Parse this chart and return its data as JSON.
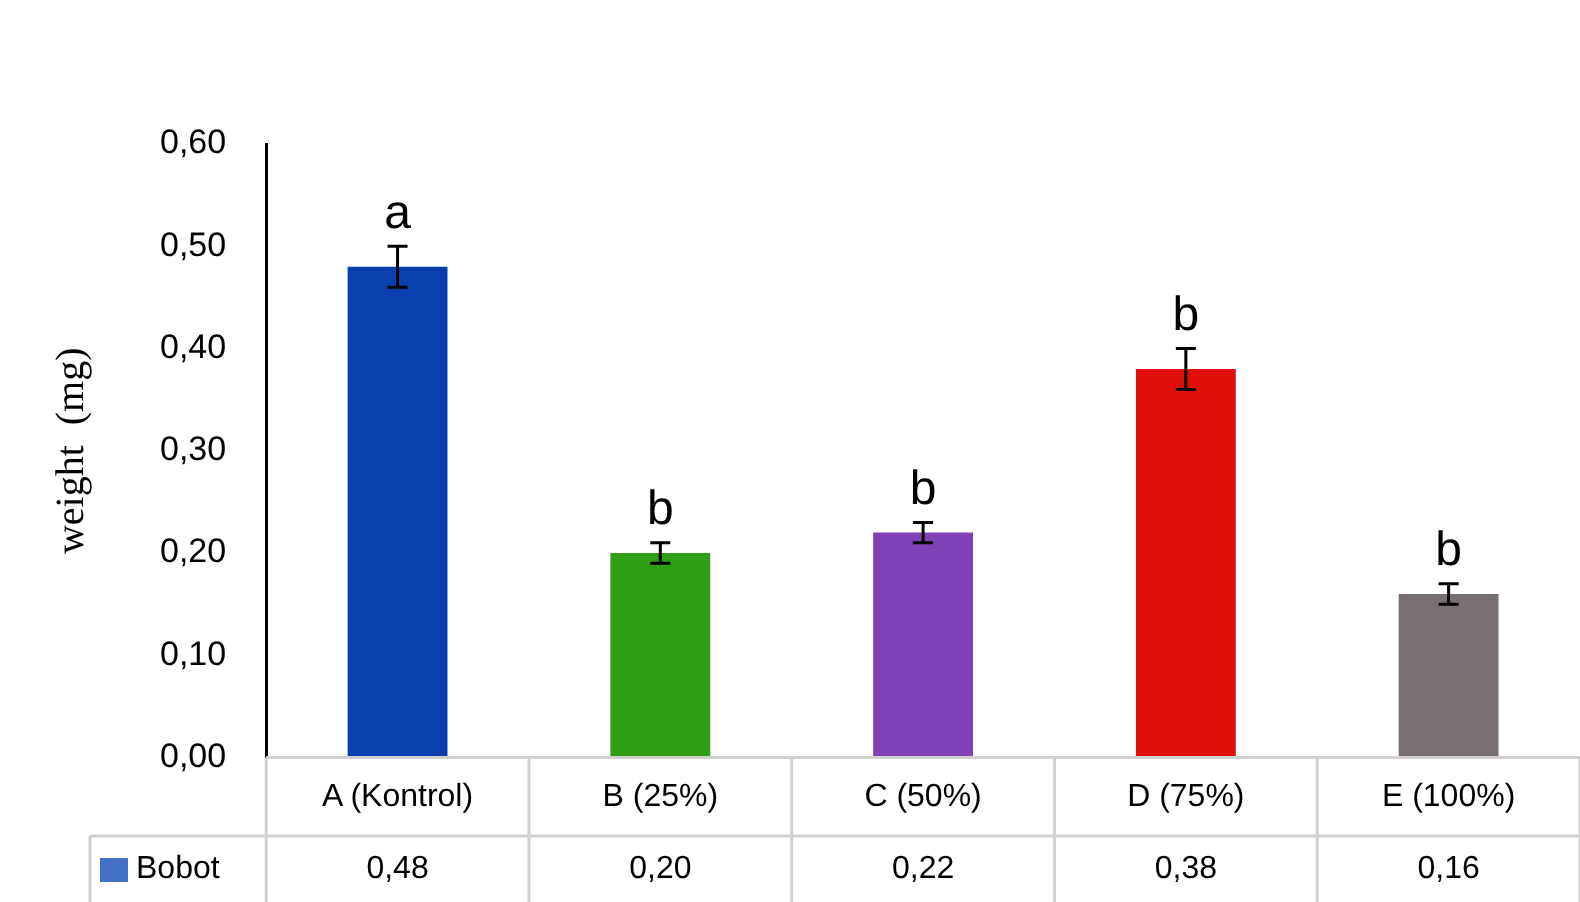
{
  "chart_data": {
    "type": "bar",
    "ylabel": "weight  (mg)",
    "categories": [
      "A (Kontrol)",
      "B (25%)",
      "C (50%)",
      "D (75%)",
      "E (100%)"
    ],
    "series": [
      {
        "name": "Bobot",
        "color": "#4472c4",
        "colors": [
          "#0a3fb0",
          "#2e9e15",
          "#8040b8",
          "#e01008",
          "#787070"
        ],
        "values": [
          0.48,
          0.2,
          0.22,
          0.38,
          0.16
        ],
        "value_labels": [
          "0,48",
          "0,20",
          "0,22",
          "0,38",
          "0,16"
        ],
        "errors": [
          0.02,
          0.01,
          0.01,
          0.02,
          0.01
        ]
      }
    ],
    "ylim": [
      0,
      0.6
    ],
    "yticks": [
      {
        "value": 0,
        "label": "0,00"
      },
      {
        "value": 0.1,
        "label": "0,10"
      },
      {
        "value": 0.2,
        "label": "0,20"
      },
      {
        "value": 0.3,
        "label": "0,30"
      },
      {
        "value": 0.4,
        "label": "0,40"
      },
      {
        "value": 0.5,
        "label": "0,50"
      },
      {
        "value": 0.6,
        "label": "0,60"
      }
    ],
    "grid": false,
    "legend": false,
    "annotations": [
      {
        "text": "a",
        "x": "A (Kontrol)",
        "y": 0.5
      },
      {
        "text": "b",
        "x": "B (25%)",
        "y": 0.21
      },
      {
        "text": "b",
        "x": "C (50%)",
        "y": 0.23
      },
      {
        "text": "b",
        "x": "D (75%)",
        "y": 0.4
      },
      {
        "text": "b",
        "x": "E (100%)",
        "y": 0.17
      }
    ]
  }
}
